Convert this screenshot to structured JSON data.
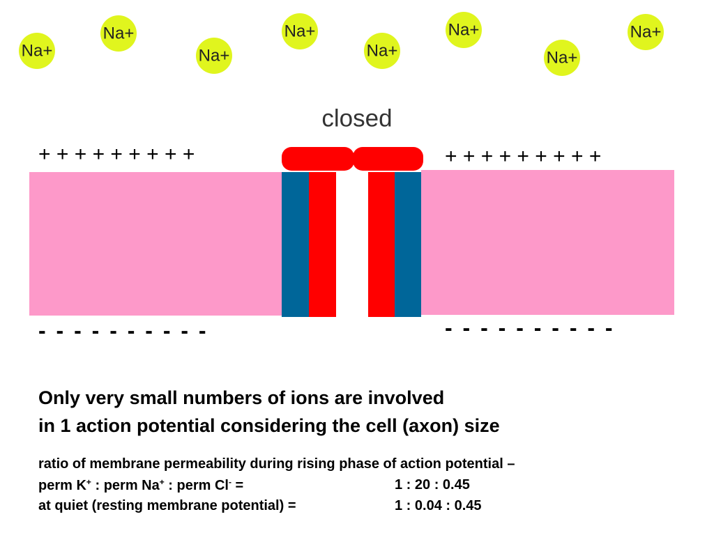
{
  "ions": [
    "Na+",
    "Na+",
    "Na+",
    "Na+",
    "Na+",
    "Na+",
    "Na+",
    "Na+"
  ],
  "gate_state": "closed",
  "outside_charges_left": "+ + + + + + + + +",
  "outside_charges_right": "+ + + + + + + + +",
  "inside_charges_left": "- - - - - - - - - -",
  "inside_charges_right": "- - - - - - - - - -",
  "heading": [
    "Only very small numbers of ions are involved",
    "in 1 action potential considering the cell (axon) size"
  ],
  "ratio_intro": "ratio of membrane permeability during rising phase of action potential –",
  "perm_line": {
    "parts": [
      "perm K",
      "+",
      " : perm Na",
      "+",
      " : perm Cl",
      "-",
      " ="
    ],
    "value": "1 : 20 : 0.45"
  },
  "rest_line": {
    "label": "at quiet (resting membrane potential) =",
    "value": "1 : 0.04 : 0.45"
  }
}
